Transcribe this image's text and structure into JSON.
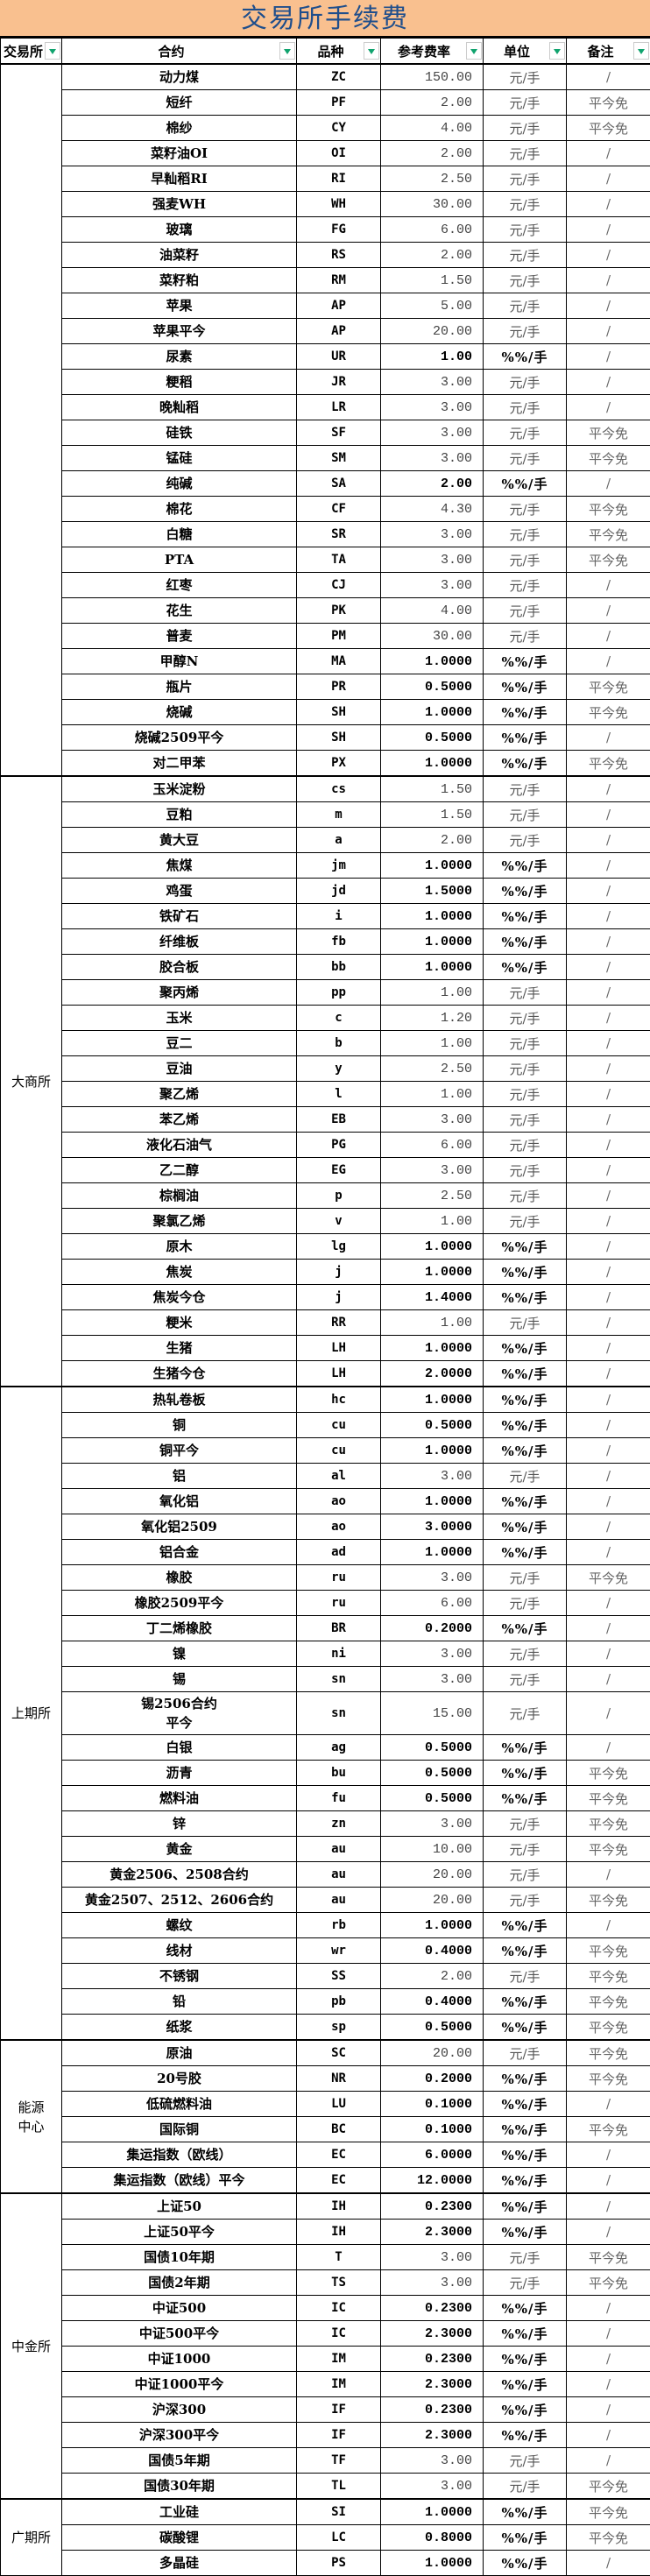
{
  "title": "交易所手续费",
  "headers": [
    "交易所",
    "合约",
    "品种",
    "参考费率",
    "单位",
    "备注"
  ],
  "accent": {
    "title_bg": "#F9C08F",
    "title_text": "#1F4E8C",
    "filter_arrow": "#10A36E"
  },
  "groups": [
    {
      "exchange": "",
      "rows": [
        [
          "动力煤",
          "ZC",
          "150.00",
          "元/手",
          "/"
        ],
        [
          "短纤",
          "PF",
          "2.00",
          "元/手",
          "平今免"
        ],
        [
          "棉纱",
          "CY",
          "4.00",
          "元/手",
          "平今免"
        ],
        [
          "菜籽油OI",
          "OI",
          "2.00",
          "元/手",
          "/"
        ],
        [
          "早籼稻RI",
          "RI",
          "2.50",
          "元/手",
          "/"
        ],
        [
          "强麦WH",
          "WH",
          "30.00",
          "元/手",
          "/"
        ],
        [
          "玻璃",
          "FG",
          "6.00",
          "元/手",
          "/"
        ],
        [
          "油菜籽",
          "RS",
          "2.00",
          "元/手",
          "/"
        ],
        [
          "菜籽粕",
          "RM",
          "1.50",
          "元/手",
          "/"
        ],
        [
          "苹果",
          "AP",
          "5.00",
          "元/手",
          "/"
        ],
        [
          "苹果平今",
          "AP",
          "20.00",
          "元/手",
          "/"
        ],
        [
          "尿素",
          "UR",
          "1.00",
          "%%/手",
          "/"
        ],
        [
          "粳稻",
          "JR",
          "3.00",
          "元/手",
          "/"
        ],
        [
          "晚籼稻",
          "LR",
          "3.00",
          "元/手",
          "/"
        ],
        [
          "硅铁",
          "SF",
          "3.00",
          "元/手",
          "平今免"
        ],
        [
          "锰硅",
          "SM",
          "3.00",
          "元/手",
          "平今免"
        ],
        [
          "纯碱",
          "SA",
          "2.00",
          "%%/手",
          "/"
        ],
        [
          "棉花",
          "CF",
          "4.30",
          "元/手",
          "平今免"
        ],
        [
          "白糖",
          "SR",
          "3.00",
          "元/手",
          "平今免"
        ],
        [
          "PTA",
          "TA",
          "3.00",
          "元/手",
          "平今免"
        ],
        [
          "红枣",
          "CJ",
          "3.00",
          "元/手",
          "/"
        ],
        [
          "花生",
          "PK",
          "4.00",
          "元/手",
          "/"
        ],
        [
          "普麦",
          "PM",
          "30.00",
          "元/手",
          "/"
        ],
        [
          "甲醇N",
          "MA",
          "1.0000",
          "%%/手",
          "/"
        ],
        [
          "瓶片",
          "PR",
          "0.5000",
          "%%/手",
          "平今免"
        ],
        [
          "烧碱",
          "SH",
          "1.0000",
          "%%/手",
          "平今免"
        ],
        [
          "烧碱2509平今",
          "SH",
          "0.5000",
          "%%/手",
          "/"
        ],
        [
          "对二甲苯",
          "PX",
          "1.0000",
          "%%/手",
          "平今免"
        ]
      ]
    },
    {
      "exchange": "大商所",
      "rows": [
        [
          "玉米淀粉",
          "cs",
          "1.50",
          "元/手",
          "/"
        ],
        [
          "豆粕",
          "m",
          "1.50",
          "元/手",
          "/"
        ],
        [
          "黄大豆",
          "a",
          "2.00",
          "元/手",
          "/"
        ],
        [
          "焦煤",
          "jm",
          "1.0000",
          "%%/手",
          "/"
        ],
        [
          "鸡蛋",
          "jd",
          "1.5000",
          "%%/手",
          "/"
        ],
        [
          "铁矿石",
          "i",
          "1.0000",
          "%%/手",
          "/"
        ],
        [
          "纤维板",
          "fb",
          "1.0000",
          "%%/手",
          "/"
        ],
        [
          "胶合板",
          "bb",
          "1.0000",
          "%%/手",
          "/"
        ],
        [
          "聚丙烯",
          "pp",
          "1.00",
          "元/手",
          "/"
        ],
        [
          "玉米",
          "c",
          "1.20",
          "元/手",
          "/"
        ],
        [
          "豆二",
          "b",
          "1.00",
          "元/手",
          "/"
        ],
        [
          "豆油",
          "y",
          "2.50",
          "元/手",
          "/"
        ],
        [
          "聚乙烯",
          "l",
          "1.00",
          "元/手",
          "/"
        ],
        [
          "苯乙烯",
          "EB",
          "3.00",
          "元/手",
          "/"
        ],
        [
          "液化石油气",
          "PG",
          "6.00",
          "元/手",
          "/"
        ],
        [
          "乙二醇",
          "EG",
          "3.00",
          "元/手",
          "/"
        ],
        [
          "棕榈油",
          "p",
          "2.50",
          "元/手",
          "/"
        ],
        [
          "聚氯乙烯",
          "v",
          "1.00",
          "元/手",
          "/"
        ],
        [
          "原木",
          "lg",
          "1.0000",
          "%%/手",
          "/"
        ],
        [
          "焦炭",
          "j",
          "1.0000",
          "%%/手",
          "/"
        ],
        [
          "焦炭今仓",
          "j",
          "1.4000",
          "%%/手",
          "/"
        ],
        [
          "粳米",
          "RR",
          "1.00",
          "元/手",
          "/"
        ],
        [
          "生猪",
          "LH",
          "1.0000",
          "%%/手",
          "/"
        ],
        [
          "生猪今仓",
          "LH",
          "2.0000",
          "%%/手",
          "/"
        ]
      ]
    },
    {
      "exchange": "上期所",
      "rows": [
        [
          "热轧卷板",
          "hc",
          "1.0000",
          "%%/手",
          "/"
        ],
        [
          "铜",
          "cu",
          "0.5000",
          "%%/手",
          "/"
        ],
        [
          "铜平今",
          "cu",
          "1.0000",
          "%%/手",
          "/"
        ],
        [
          "铝",
          "al",
          "3.00",
          "元/手",
          "/"
        ],
        [
          "氧化铝",
          "ao",
          "1.0000",
          "%%/手",
          "/"
        ],
        [
          "氧化铝2509",
          "ao",
          "3.0000",
          "%%/手",
          "/"
        ],
        [
          "铝合金",
          "ad",
          "1.0000",
          "%%/手",
          "/"
        ],
        [
          "橡胶",
          "ru",
          "3.00",
          "元/手",
          "平今免"
        ],
        [
          "橡胶2509平今",
          "ru",
          "6.00",
          "元/手",
          "/"
        ],
        [
          "丁二烯橡胶",
          "BR",
          "0.2000",
          "%%/手",
          "/"
        ],
        [
          "镍",
          "ni",
          "3.00",
          "元/手",
          "/"
        ],
        [
          "锡",
          "sn",
          "3.00",
          "元/手",
          "/"
        ],
        [
          "锡2506合约\n平今",
          "sn",
          "15.00",
          "元/手",
          "/"
        ],
        [
          "白银",
          "ag",
          "0.5000",
          "%%/手",
          "/"
        ],
        [
          "沥青",
          "bu",
          "0.5000",
          "%%/手",
          "平今免"
        ],
        [
          "燃料油",
          "fu",
          "0.5000",
          "%%/手",
          "平今免"
        ],
        [
          "锌",
          "zn",
          "3.00",
          "元/手",
          "平今免"
        ],
        [
          "黄金",
          "au",
          "10.00",
          "元/手",
          "平今免"
        ],
        [
          "黄金2506、2508合约",
          "au",
          "20.00",
          "元/手",
          "/"
        ],
        [
          "黄金2507、2512、2606合约",
          "au",
          "20.00",
          "元/手",
          "平今免"
        ],
        [
          "螺纹",
          "rb",
          "1.0000",
          "%%/手",
          "/"
        ],
        [
          "线材",
          "wr",
          "0.4000",
          "%%/手",
          "平今免"
        ],
        [
          "不锈钢",
          "SS",
          "2.00",
          "元/手",
          "平今免"
        ],
        [
          "铅",
          "pb",
          "0.4000",
          "%%/手",
          "平今免"
        ],
        [
          "纸浆",
          "sp",
          "0.5000",
          "%%/手",
          "平今免"
        ]
      ]
    },
    {
      "exchange": "能源\n中心",
      "rows": [
        [
          "原油",
          "SC",
          "20.00",
          "元/手",
          "平今免"
        ],
        [
          "20号胶",
          "NR",
          "0.2000",
          "%%/手",
          "平今免"
        ],
        [
          "低硫燃料油",
          "LU",
          "0.1000",
          "%%/手",
          "/"
        ],
        [
          "国际铜",
          "BC",
          "0.1000",
          "%%/手",
          "平今免"
        ],
        [
          "集运指数（欧线）",
          "EC",
          "6.0000",
          "%%/手",
          "/"
        ],
        [
          "集运指数（欧线）平今",
          "EC",
          "12.0000",
          "%%/手",
          "/"
        ]
      ]
    },
    {
      "exchange": "中金所",
      "rows": [
        [
          "上证50",
          "IH",
          "0.2300",
          "%%/手",
          "/"
        ],
        [
          "上证50平今",
          "IH",
          "2.3000",
          "%%/手",
          "/"
        ],
        [
          "国债10年期",
          "T",
          "3.00",
          "元/手",
          "平今免"
        ],
        [
          "国债2年期",
          "TS",
          "3.00",
          "元/手",
          "平今免"
        ],
        [
          "中证500",
          "IC",
          "0.2300",
          "%%/手",
          "/"
        ],
        [
          "中证500平今",
          "IC",
          "2.3000",
          "%%/手",
          "/"
        ],
        [
          "中证1000",
          "IM",
          "0.2300",
          "%%/手",
          "/"
        ],
        [
          "中证1000平今",
          "IM",
          "2.3000",
          "%%/手",
          "/"
        ],
        [
          "沪深300",
          "IF",
          "0.2300",
          "%%/手",
          "/"
        ],
        [
          "沪深300平今",
          "IF",
          "2.3000",
          "%%/手",
          "/"
        ],
        [
          "国债5年期",
          "TF",
          "3.00",
          "元/手",
          "/"
        ],
        [
          "国债30年期",
          "TL",
          "3.00",
          "元/手",
          "平今免"
        ]
      ]
    },
    {
      "exchange": "广期所",
      "rows": [
        [
          "工业硅",
          "SI",
          "1.0000",
          "%%/手",
          "平今免"
        ],
        [
          "碳酸锂",
          "LC",
          "0.8000",
          "%%/手",
          "平今免"
        ],
        [
          "多晶硅",
          "PS",
          "1.0000",
          "%%/手",
          "/"
        ]
      ]
    }
  ]
}
